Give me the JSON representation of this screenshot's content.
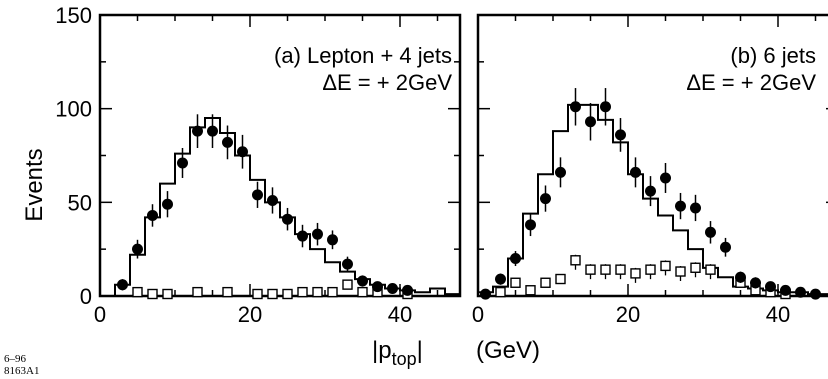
{
  "figure": {
    "ylabel": "Events",
    "xlabel_main": "|p",
    "xlabel_sub": "top",
    "xlabel_close": "|",
    "xlabel_unit": "(GeV)",
    "corner_code_1": "6–96",
    "corner_code_2": "8163A1"
  },
  "chart_data": [
    {
      "type": "histogram",
      "title": "(a) Lepton + 4 jets",
      "subtitle": "ΔE = + 2GeV",
      "xlim": [
        0,
        48
      ],
      "ylim": [
        0,
        150
      ],
      "x_ticks": [
        0,
        20,
        40
      ],
      "y_ticks": [
        0,
        50,
        100,
        150
      ],
      "x_ticks_labels": [
        "0",
        "20",
        "40"
      ],
      "y_ticks_labels": [
        "0",
        "50",
        "100",
        "150"
      ],
      "histogram": {
        "bin_edges": [
          2,
          4,
          6,
          8,
          10,
          12,
          14,
          16,
          18,
          20,
          22,
          24,
          26,
          28,
          30,
          32,
          34,
          36,
          38,
          40,
          42,
          44,
          46,
          48
        ],
        "values": [
          6,
          22,
          42,
          60,
          76,
          90,
          95,
          87,
          75,
          62,
          50,
          42,
          33,
          25,
          18,
          13,
          9,
          6,
          4,
          3,
          2,
          4,
          1
        ]
      },
      "series_filled": {
        "x": [
          3,
          5,
          7,
          9,
          11,
          13,
          15,
          17,
          19,
          21,
          23,
          25,
          27,
          29,
          31,
          33,
          35,
          37,
          39,
          41
        ],
        "y": [
          6,
          25,
          43,
          49,
          71,
          88,
          88,
          82,
          77,
          54,
          51,
          41,
          32,
          33,
          30,
          17,
          8,
          5,
          4,
          3
        ],
        "err": [
          3,
          5,
          6,
          7,
          8,
          9,
          9,
          9,
          9,
          7,
          7,
          6,
          6,
          6,
          5,
          4,
          3,
          2,
          2,
          2
        ]
      },
      "series_open": {
        "x": [
          5,
          7,
          9,
          13,
          17,
          21,
          23,
          25,
          27,
          29,
          31,
          33,
          35,
          37,
          41
        ],
        "y": [
          1,
          0,
          0,
          1,
          1,
          0,
          0,
          0,
          1,
          1,
          1,
          5,
          1,
          1,
          0
        ]
      }
    },
    {
      "type": "histogram",
      "title": "(b) 6 jets",
      "subtitle": "ΔE = + 2GeV",
      "xlim": [
        0,
        48
      ],
      "ylim": [
        0,
        150
      ],
      "x_ticks": [
        0,
        20,
        40
      ],
      "y_ticks": [
        0,
        50,
        100,
        150
      ],
      "x_ticks_labels": [
        "0",
        "20",
        "40"
      ],
      "y_ticks_labels": [
        "",
        "",
        "",
        ""
      ],
      "histogram": {
        "bin_edges": [
          0,
          2,
          4,
          6,
          8,
          10,
          12,
          14,
          16,
          18,
          20,
          22,
          24,
          26,
          28,
          30,
          32,
          34,
          36,
          38,
          40,
          42,
          44,
          46,
          48
        ],
        "values": [
          2,
          5,
          20,
          44,
          65,
          88,
          102,
          102,
          94,
          82,
          65,
          52,
          43,
          35,
          25,
          15,
          10,
          5,
          4,
          3,
          2,
          2,
          1,
          1
        ]
      },
      "series_filled": {
        "x": [
          1,
          3,
          5,
          7,
          9,
          11,
          13,
          15,
          17,
          19,
          21,
          23,
          25,
          27,
          29,
          31,
          33,
          35,
          37,
          39,
          41,
          43,
          45
        ],
        "y": [
          1,
          9,
          20,
          38,
          52,
          66,
          101,
          93,
          101,
          86,
          66,
          56,
          63,
          48,
          47,
          34,
          26,
          10,
          7,
          5,
          3,
          2,
          1
        ],
        "err": [
          1,
          3,
          4,
          6,
          7,
          8,
          10,
          10,
          10,
          9,
          8,
          8,
          8,
          7,
          7,
          6,
          5,
          3,
          3,
          2,
          2,
          1,
          1
        ]
      },
      "series_open": {
        "x": [
          3,
          5,
          7,
          9,
          11,
          13,
          15,
          17,
          19,
          21,
          23,
          25,
          27,
          29,
          31,
          35,
          37,
          39,
          41
        ],
        "y": [
          1,
          6,
          2,
          6,
          8,
          18,
          13,
          13,
          13,
          11,
          13,
          15,
          12,
          14,
          13,
          6,
          2,
          1,
          0
        ],
        "err": [
          0,
          0,
          0,
          0,
          0,
          4,
          4,
          4,
          4,
          4,
          4,
          4,
          4,
          4,
          4,
          0,
          0,
          0,
          0
        ]
      }
    }
  ]
}
